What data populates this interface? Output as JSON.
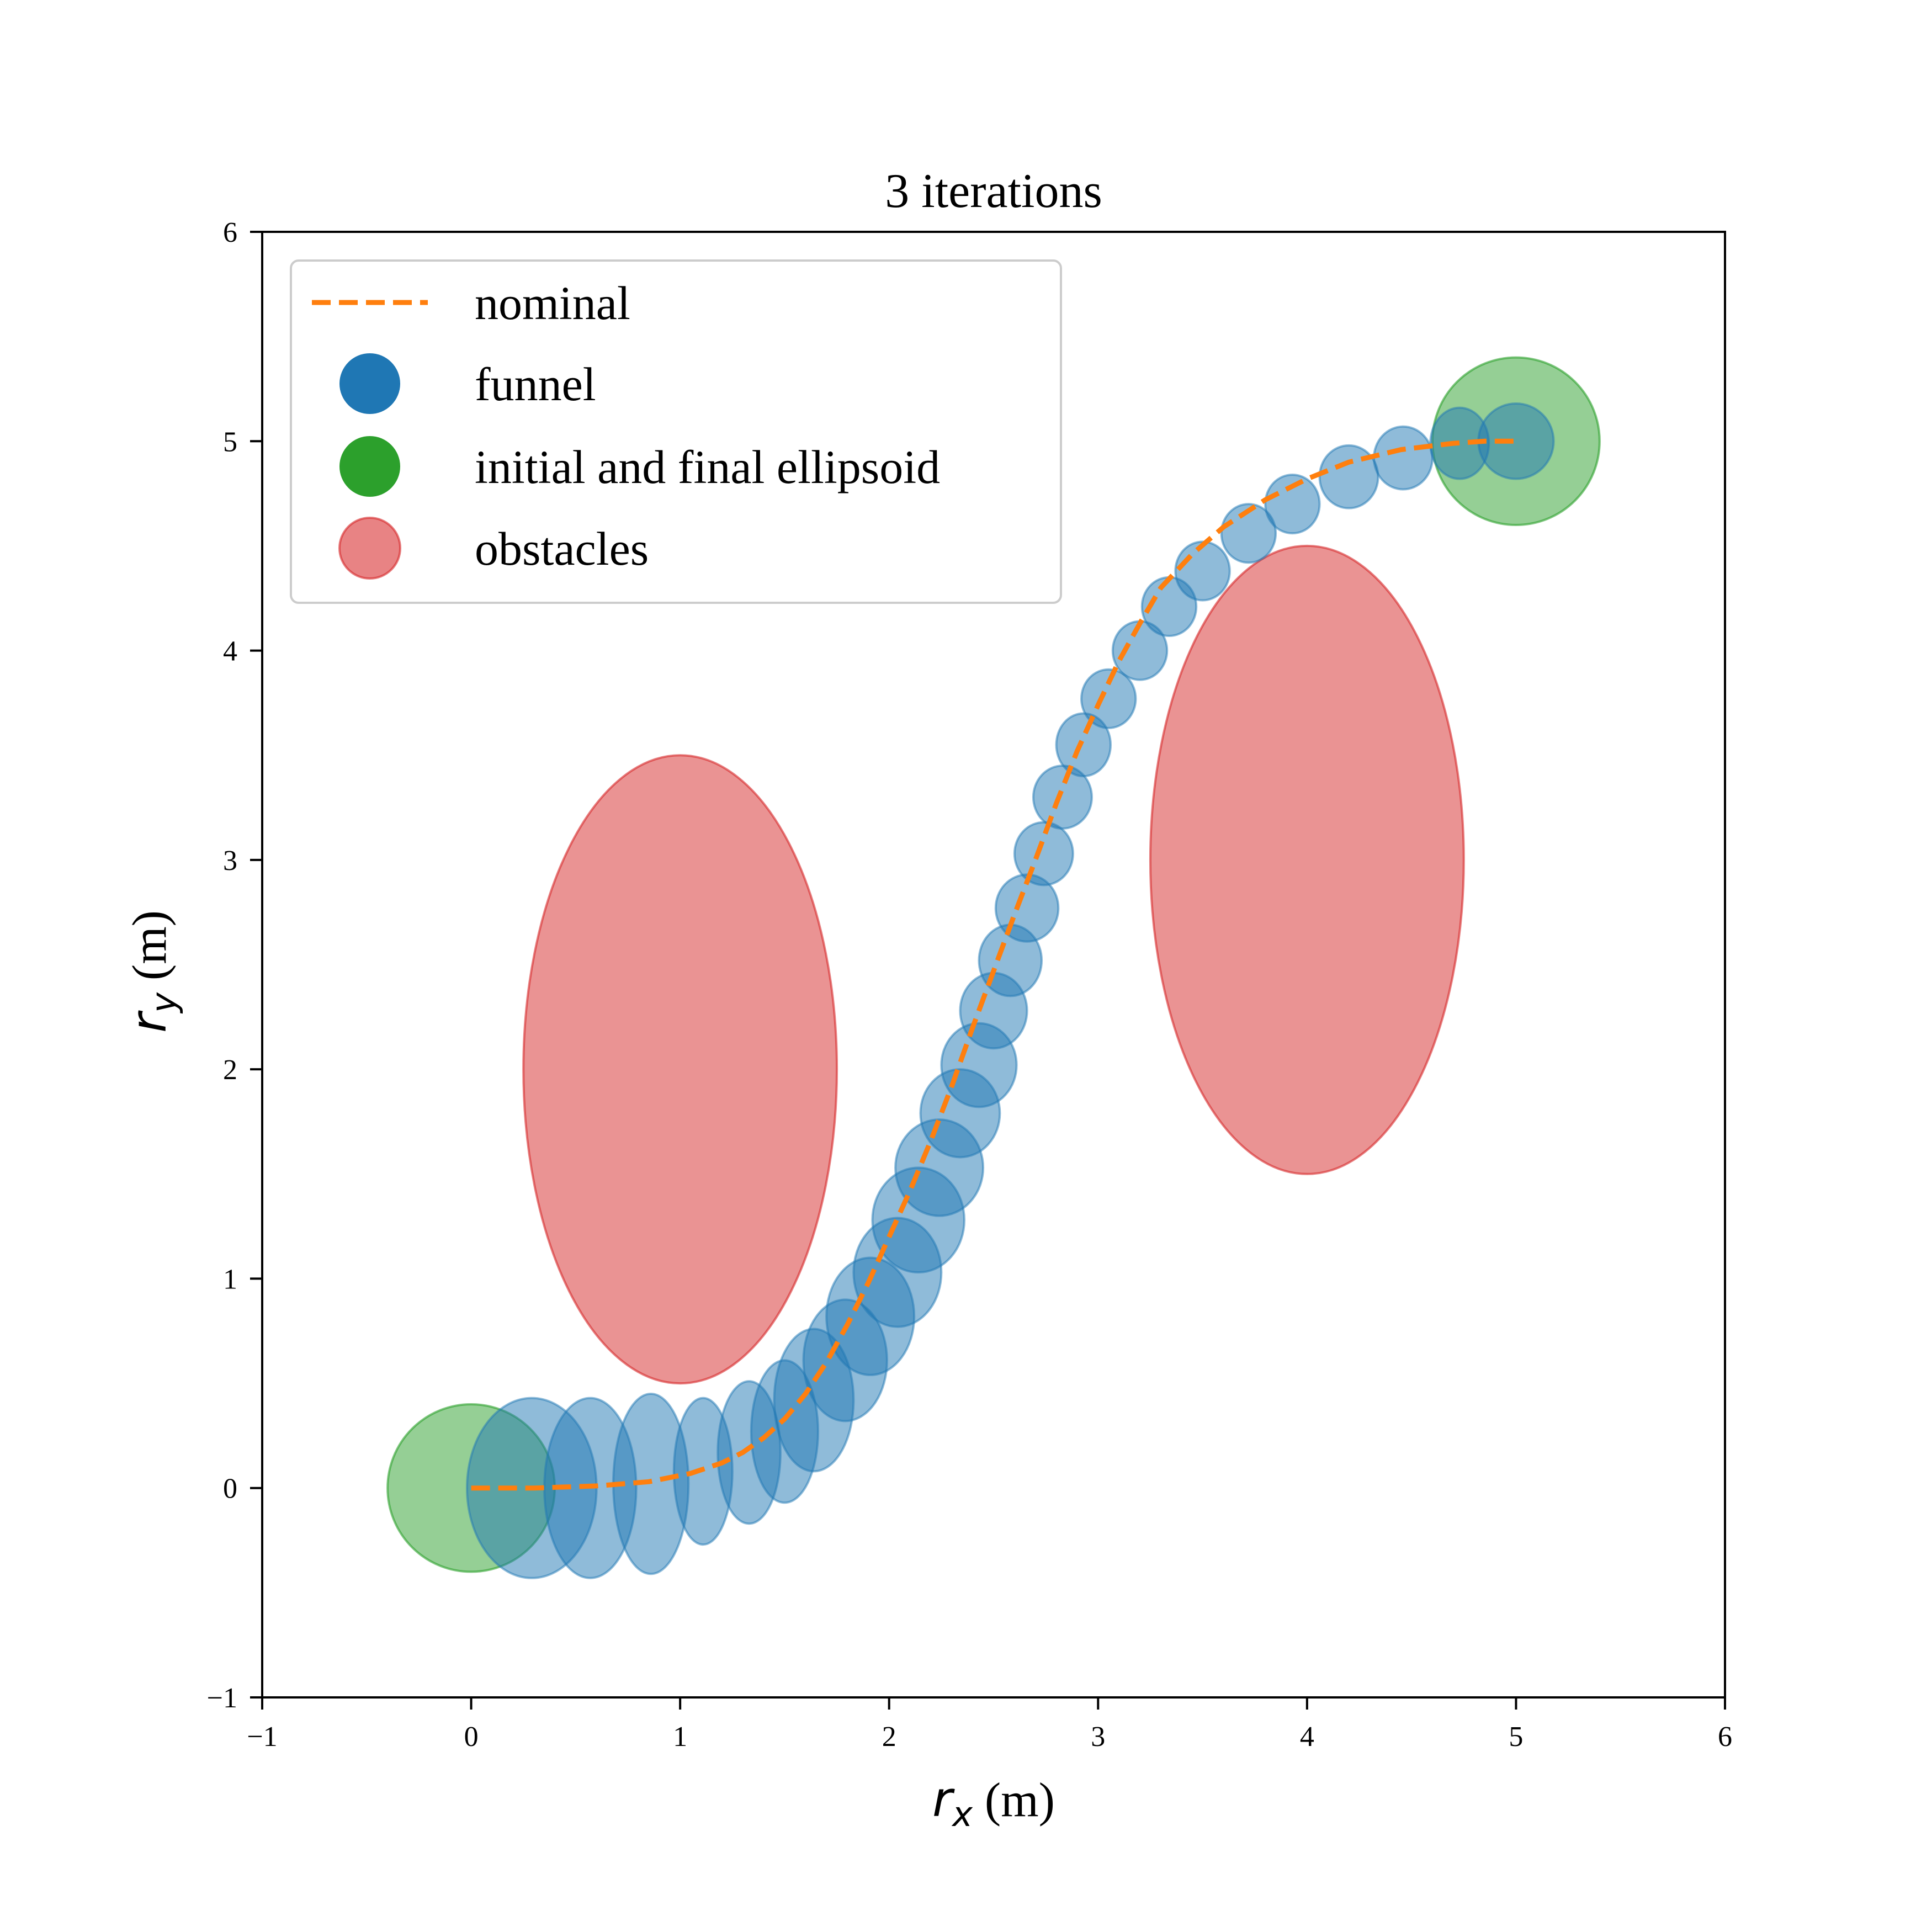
{
  "chart_data": {
    "type": "scatter",
    "title": "3 iterations",
    "xlabel": {
      "symbol": "r",
      "subscript": "x",
      "unit": " (m)"
    },
    "ylabel": {
      "symbol": "r",
      "subscript": "y",
      "unit": " (m)"
    },
    "xlim": [
      -1,
      6
    ],
    "ylim": [
      -1,
      6
    ],
    "x_ticks": [
      -1,
      0,
      1,
      2,
      3,
      4,
      5,
      6
    ],
    "y_ticks": [
      -1,
      0,
      1,
      2,
      3,
      4,
      5,
      6
    ],
    "x_tick_labels": [
      "−1",
      "0",
      "1",
      "2",
      "3",
      "4",
      "5",
      "6"
    ],
    "y_tick_labels": [
      "−1",
      "0",
      "1",
      "2",
      "3",
      "4",
      "5",
      "6"
    ],
    "grid": false,
    "legend": {
      "placement": "upper-left",
      "entries": [
        {
          "label": "nominal",
          "kind": "dashed-line",
          "color": "#ff7f0e"
        },
        {
          "label": "funnel",
          "kind": "circle",
          "color": "#1f77b4"
        },
        {
          "label": "initial and final ellipsoid",
          "kind": "circle",
          "color": "#2ca02c"
        },
        {
          "label": "obstacles",
          "kind": "circle",
          "color": "#e88384"
        }
      ]
    },
    "colors": {
      "nominal": "#ff7f0e",
      "funnel": "#1f77b4",
      "endpoints": "#2ca02c",
      "obstacles": "#d62728"
    },
    "nominal_path": {
      "x": [
        0.0,
        0.3,
        0.6,
        0.85,
        1.05,
        1.2,
        1.3,
        1.4,
        1.5,
        1.6,
        1.7,
        1.8,
        1.9,
        2.0,
        2.1,
        2.2,
        2.3,
        2.4,
        2.5,
        2.6,
        2.7,
        2.8,
        2.9,
        3.0,
        3.1,
        3.2,
        3.3,
        3.45,
        3.6,
        3.8,
        4.0,
        4.2,
        4.45,
        4.7,
        4.85,
        5.0
      ],
      "y": [
        0.0,
        0.0,
        0.01,
        0.03,
        0.07,
        0.12,
        0.17,
        0.24,
        0.33,
        0.45,
        0.6,
        0.78,
        0.98,
        1.2,
        1.42,
        1.66,
        1.92,
        2.2,
        2.47,
        2.74,
        3.0,
        3.27,
        3.52,
        3.74,
        3.95,
        4.13,
        4.3,
        4.46,
        4.59,
        4.72,
        4.82,
        4.9,
        4.96,
        4.99,
        5.0,
        5.0
      ]
    },
    "funnel_ellipses": [
      {
        "cx": 0.29,
        "cy": 0.0,
        "rx": 0.31,
        "ry": 0.43
      },
      {
        "cx": 0.57,
        "cy": 0.0,
        "rx": 0.22,
        "ry": 0.43
      },
      {
        "cx": 0.86,
        "cy": 0.02,
        "rx": 0.18,
        "ry": 0.43
      },
      {
        "cx": 1.11,
        "cy": 0.08,
        "rx": 0.14,
        "ry": 0.35
      },
      {
        "cx": 1.33,
        "cy": 0.17,
        "rx": 0.15,
        "ry": 0.34
      },
      {
        "cx": 1.5,
        "cy": 0.27,
        "rx": 0.16,
        "ry": 0.34
      },
      {
        "cx": 1.64,
        "cy": 0.42,
        "rx": 0.19,
        "ry": 0.34
      },
      {
        "cx": 1.79,
        "cy": 0.61,
        "rx": 0.2,
        "ry": 0.29
      },
      {
        "cx": 1.91,
        "cy": 0.82,
        "rx": 0.21,
        "ry": 0.28
      },
      {
        "cx": 2.04,
        "cy": 1.03,
        "rx": 0.21,
        "ry": 0.26
      },
      {
        "cx": 2.14,
        "cy": 1.28,
        "rx": 0.22,
        "ry": 0.25
      },
      {
        "cx": 2.24,
        "cy": 1.53,
        "rx": 0.21,
        "ry": 0.23
      },
      {
        "cx": 2.34,
        "cy": 1.79,
        "rx": 0.19,
        "ry": 0.21
      },
      {
        "cx": 2.43,
        "cy": 2.02,
        "rx": 0.18,
        "ry": 0.2
      },
      {
        "cx": 2.5,
        "cy": 2.28,
        "rx": 0.16,
        "ry": 0.18
      },
      {
        "cx": 2.58,
        "cy": 2.52,
        "rx": 0.15,
        "ry": 0.17
      },
      {
        "cx": 2.66,
        "cy": 2.77,
        "rx": 0.15,
        "ry": 0.16
      },
      {
        "cx": 2.74,
        "cy": 3.03,
        "rx": 0.14,
        "ry": 0.15
      },
      {
        "cx": 2.83,
        "cy": 3.3,
        "rx": 0.14,
        "ry": 0.15
      },
      {
        "cx": 2.93,
        "cy": 3.55,
        "rx": 0.13,
        "ry": 0.15
      },
      {
        "cx": 3.05,
        "cy": 3.77,
        "rx": 0.13,
        "ry": 0.14
      },
      {
        "cx": 3.2,
        "cy": 4.0,
        "rx": 0.13,
        "ry": 0.14
      },
      {
        "cx": 3.34,
        "cy": 4.21,
        "rx": 0.13,
        "ry": 0.14
      },
      {
        "cx": 3.5,
        "cy": 4.38,
        "rx": 0.13,
        "ry": 0.14
      },
      {
        "cx": 3.72,
        "cy": 4.56,
        "rx": 0.13,
        "ry": 0.14
      },
      {
        "cx": 3.93,
        "cy": 4.7,
        "rx": 0.13,
        "ry": 0.14
      },
      {
        "cx": 4.2,
        "cy": 4.83,
        "rx": 0.14,
        "ry": 0.15
      },
      {
        "cx": 4.46,
        "cy": 4.92,
        "rx": 0.14,
        "ry": 0.15
      },
      {
        "cx": 4.73,
        "cy": 4.99,
        "rx": 0.14,
        "ry": 0.17
      },
      {
        "cx": 5.0,
        "cy": 5.0,
        "rx": 0.18,
        "ry": 0.18
      }
    ],
    "endpoint_ellipses": [
      {
        "name": "initial",
        "cx": 0.0,
        "cy": 0.0,
        "rx": 0.4,
        "ry": 0.4
      },
      {
        "name": "final",
        "cx": 5.0,
        "cy": 5.0,
        "rx": 0.4,
        "ry": 0.4
      }
    ],
    "obstacles": [
      {
        "cx": 1.0,
        "cy": 2.0,
        "rx": 0.75,
        "ry": 1.5
      },
      {
        "cx": 4.0,
        "cy": 3.0,
        "rx": 0.75,
        "ry": 1.5
      }
    ]
  }
}
